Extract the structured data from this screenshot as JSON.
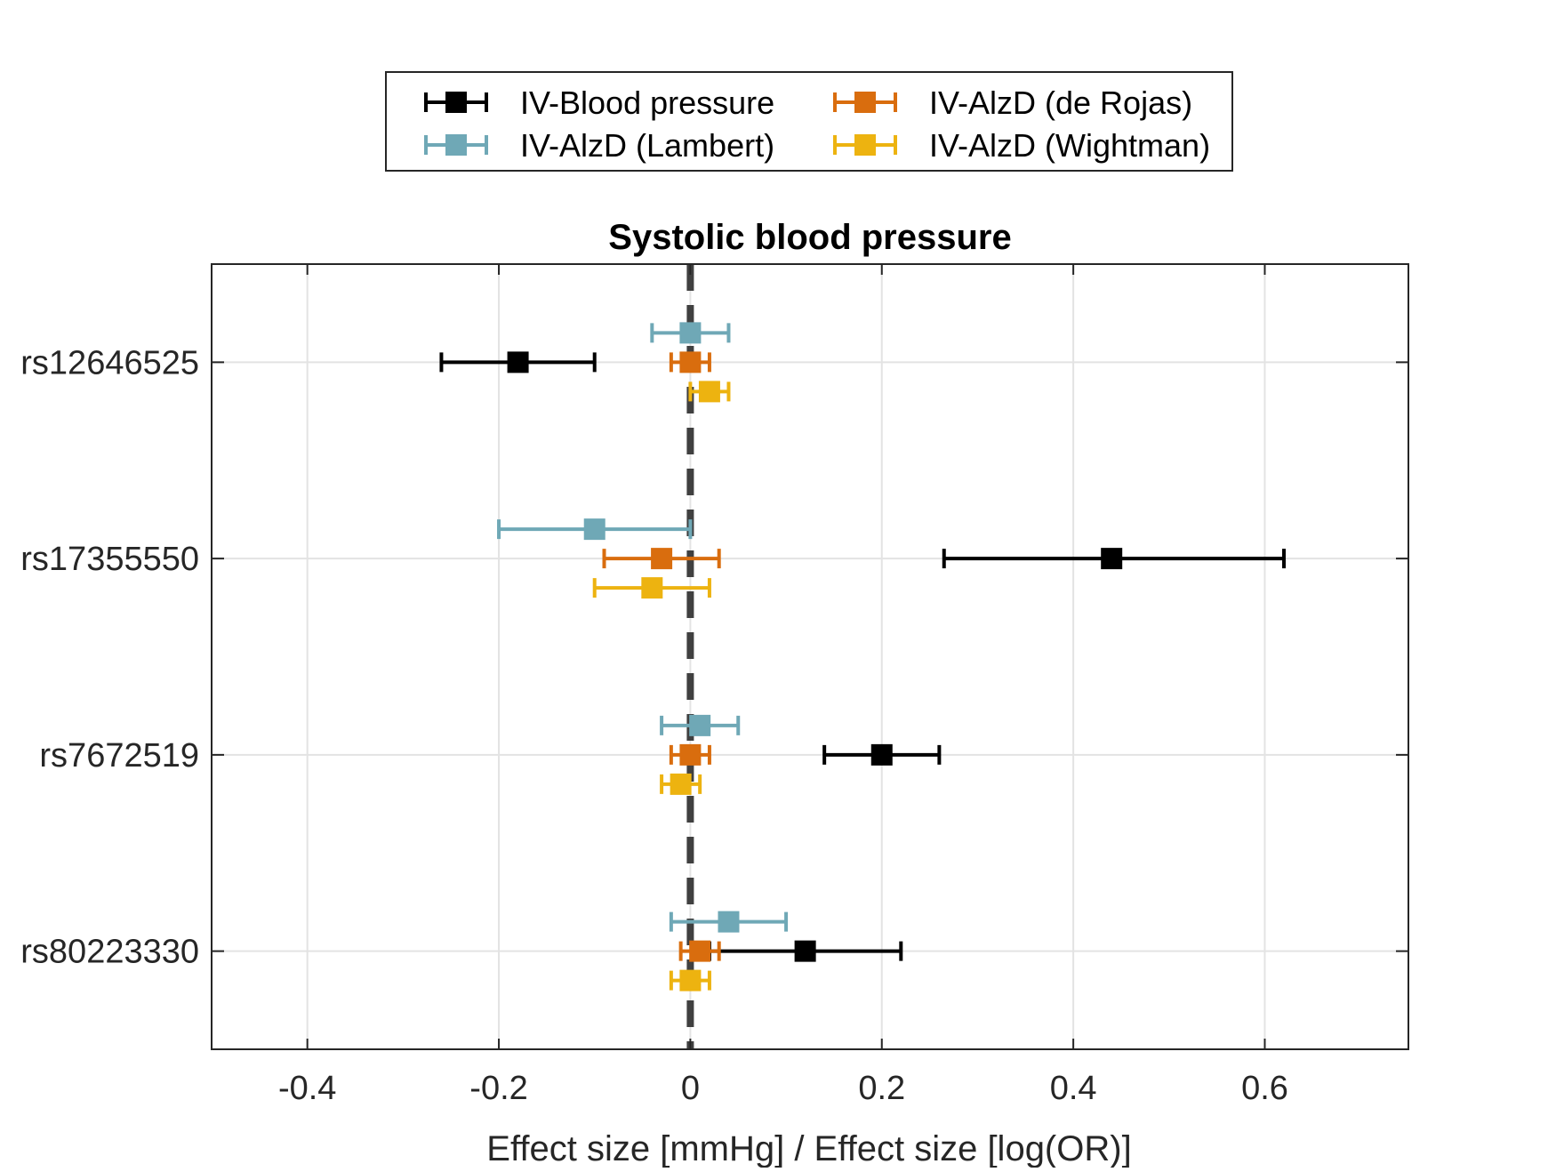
{
  "chart_data": {
    "type": "scatter",
    "subtype": "forest-plot",
    "title": "Systolic blood pressure",
    "xlabel": "Effect size [mmHg] / Effect size [log(OR)]",
    "ylabel": "",
    "xlim": [
      -0.5,
      0.75
    ],
    "xticks": [
      -0.4,
      -0.2,
      0,
      0.2,
      0.4,
      0.6
    ],
    "xtick_labels": [
      "-0.4",
      "-0.2",
      "0",
      "0.2",
      "0.4",
      "0.6"
    ],
    "categories": [
      "rs12646525",
      "rs17355550",
      "rs7672519",
      "rs80223330"
    ],
    "grid": true,
    "reference_line": {
      "x": 0,
      "style": "dashed",
      "color": "#404040"
    },
    "legend": {
      "position": "top",
      "columns": 2
    },
    "series": [
      {
        "name": "IV-Blood pressure",
        "color": "#000000",
        "points": [
          {
            "category": "rs12646525",
            "estimate": -0.18,
            "lower": -0.26,
            "upper": -0.1
          },
          {
            "category": "rs17355550",
            "estimate": 0.44,
            "lower": 0.265,
            "upper": 0.62
          },
          {
            "category": "rs7672519",
            "estimate": 0.2,
            "lower": 0.14,
            "upper": 0.26
          },
          {
            "category": "rs80223330",
            "estimate": 0.12,
            "lower": 0.02,
            "upper": 0.22
          }
        ]
      },
      {
        "name": "IV-AlzD (Lambert)",
        "color": "#6FA8B6",
        "points": [
          {
            "category": "rs12646525",
            "estimate": 0.0,
            "lower": -0.04,
            "upper": 0.04
          },
          {
            "category": "rs17355550",
            "estimate": -0.1,
            "lower": -0.2,
            "upper": 0.0
          },
          {
            "category": "rs7672519",
            "estimate": 0.01,
            "lower": -0.03,
            "upper": 0.05
          },
          {
            "category": "rs80223330",
            "estimate": 0.04,
            "lower": -0.02,
            "upper": 0.1
          }
        ]
      },
      {
        "name": "IV-AlzD (de Rojas)",
        "color": "#D96D0E",
        "points": [
          {
            "category": "rs12646525",
            "estimate": 0.0,
            "lower": -0.02,
            "upper": 0.02
          },
          {
            "category": "rs17355550",
            "estimate": -0.03,
            "lower": -0.09,
            "upper": 0.03
          },
          {
            "category": "rs7672519",
            "estimate": 0.0,
            "lower": -0.02,
            "upper": 0.02
          },
          {
            "category": "rs80223330",
            "estimate": 0.01,
            "lower": -0.01,
            "upper": 0.03
          }
        ]
      },
      {
        "name": "IV-AlzD (Wightman)",
        "color": "#EDB310",
        "points": [
          {
            "category": "rs12646525",
            "estimate": 0.02,
            "lower": 0.0,
            "upper": 0.04
          },
          {
            "category": "rs17355550",
            "estimate": -0.04,
            "lower": -0.1,
            "upper": 0.02
          },
          {
            "category": "rs7672519",
            "estimate": -0.01,
            "lower": -0.03,
            "upper": 0.01
          },
          {
            "category": "rs80223330",
            "estimate": 0.0,
            "lower": -0.02,
            "upper": 0.02
          }
        ]
      }
    ]
  }
}
